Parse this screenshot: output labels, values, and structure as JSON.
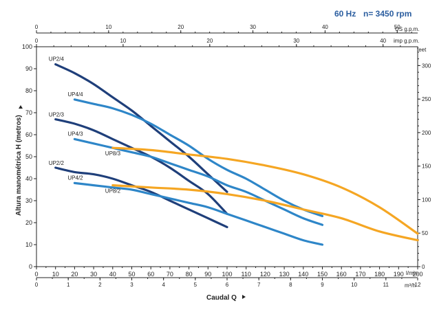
{
  "header": {
    "frequency": "60 Hz",
    "speed": "n= 3450 rpm"
  },
  "chart_data": {
    "type": "line",
    "xlabel": "Caudal Q",
    "ylabel": "Altura manométrica H (metros)",
    "xlim": [
      0,
      200
    ],
    "ylim": [
      0,
      100
    ],
    "x_unit": "l/min",
    "x_ticks": [
      0,
      10,
      20,
      30,
      40,
      50,
      60,
      70,
      80,
      90,
      100,
      110,
      120,
      130,
      140,
      150,
      160,
      170,
      180,
      190,
      200
    ],
    "y_ticks": [
      0,
      10,
      20,
      30,
      40,
      50,
      60,
      70,
      80,
      90,
      100
    ],
    "secondary_axes": {
      "m3h": {
        "unit": "m³/h",
        "ticks": [
          0,
          1,
          2,
          3,
          4,
          5,
          6,
          7,
          8,
          9,
          10,
          11,
          12
        ],
        "lpm_per_unit": 16.6667
      },
      "us_gpm": {
        "unit": "US g.p.m.",
        "ticks": [
          0,
          10,
          20,
          30,
          40,
          50
        ],
        "lpm_per_unit": 3.7854
      },
      "imp_gpm": {
        "unit": "imp g.p.m.",
        "ticks": [
          0,
          10,
          20,
          30,
          40
        ],
        "lpm_per_unit": 4.546
      },
      "feet": {
        "unit": "feet",
        "ticks": [
          0,
          50,
          100,
          150,
          200,
          250,
          300
        ],
        "m_per_unit": 0.3048
      }
    },
    "grid": false,
    "series": [
      {
        "name": "UP2/4",
        "color": "#1f3f7a",
        "points": [
          [
            10,
            92
          ],
          [
            20,
            88
          ],
          [
            30,
            83
          ],
          [
            40,
            77
          ],
          [
            50,
            71
          ],
          [
            60,
            64
          ],
          [
            70,
            57
          ],
          [
            80,
            50
          ],
          [
            90,
            42
          ],
          [
            100,
            34
          ]
        ]
      },
      {
        "name": "UP2/3",
        "color": "#1f3f7a",
        "points": [
          [
            10,
            67
          ],
          [
            20,
            65
          ],
          [
            30,
            62
          ],
          [
            40,
            58
          ],
          [
            50,
            54
          ],
          [
            60,
            50
          ],
          [
            70,
            45
          ],
          [
            80,
            39
          ],
          [
            90,
            33
          ],
          [
            100,
            24
          ]
        ]
      },
      {
        "name": "UP2/2",
        "color": "#1f3f7a",
        "points": [
          [
            10,
            45
          ],
          [
            20,
            43
          ],
          [
            30,
            42
          ],
          [
            40,
            40
          ],
          [
            50,
            37
          ],
          [
            60,
            34
          ],
          [
            70,
            30
          ],
          [
            80,
            26
          ],
          [
            90,
            22
          ],
          [
            100,
            18
          ]
        ]
      },
      {
        "name": "UP4/4",
        "color": "#2e86c8",
        "points": [
          [
            20,
            76
          ],
          [
            30,
            74
          ],
          [
            40,
            72
          ],
          [
            50,
            69
          ],
          [
            60,
            65
          ],
          [
            70,
            60
          ],
          [
            80,
            55
          ],
          [
            90,
            49
          ],
          [
            100,
            44
          ],
          [
            110,
            40
          ],
          [
            120,
            35
          ],
          [
            130,
            30
          ],
          [
            140,
            26
          ],
          [
            150,
            23
          ]
        ]
      },
      {
        "name": "UP4/3",
        "color": "#2e86c8",
        "points": [
          [
            20,
            58
          ],
          [
            30,
            56
          ],
          [
            40,
            54
          ],
          [
            50,
            52
          ],
          [
            60,
            50
          ],
          [
            70,
            47
          ],
          [
            80,
            44
          ],
          [
            90,
            41
          ],
          [
            100,
            37
          ],
          [
            110,
            34
          ],
          [
            120,
            30
          ],
          [
            130,
            26
          ],
          [
            140,
            22
          ],
          [
            150,
            19
          ]
        ]
      },
      {
        "name": "UP4/2",
        "color": "#2e86c8",
        "points": [
          [
            20,
            38
          ],
          [
            30,
            37
          ],
          [
            40,
            36
          ],
          [
            50,
            35
          ],
          [
            60,
            33
          ],
          [
            70,
            31
          ],
          [
            80,
            29
          ],
          [
            90,
            27
          ],
          [
            100,
            24
          ],
          [
            110,
            21
          ],
          [
            120,
            18
          ],
          [
            130,
            15
          ],
          [
            140,
            12
          ],
          [
            150,
            10
          ]
        ]
      },
      {
        "name": "UP8/3",
        "color": "#f5a623",
        "points": [
          [
            40,
            54
          ],
          [
            60,
            53
          ],
          [
            80,
            51
          ],
          [
            100,
            49
          ],
          [
            120,
            46
          ],
          [
            140,
            42
          ],
          [
            160,
            36
          ],
          [
            180,
            27
          ],
          [
            200,
            15
          ]
        ]
      },
      {
        "name": "UP8/2",
        "color": "#f5a623",
        "points": [
          [
            40,
            37
          ],
          [
            60,
            36
          ],
          [
            80,
            35
          ],
          [
            100,
            33
          ],
          [
            120,
            30
          ],
          [
            140,
            26
          ],
          [
            160,
            22
          ],
          [
            180,
            16
          ],
          [
            200,
            12
          ]
        ]
      }
    ]
  }
}
